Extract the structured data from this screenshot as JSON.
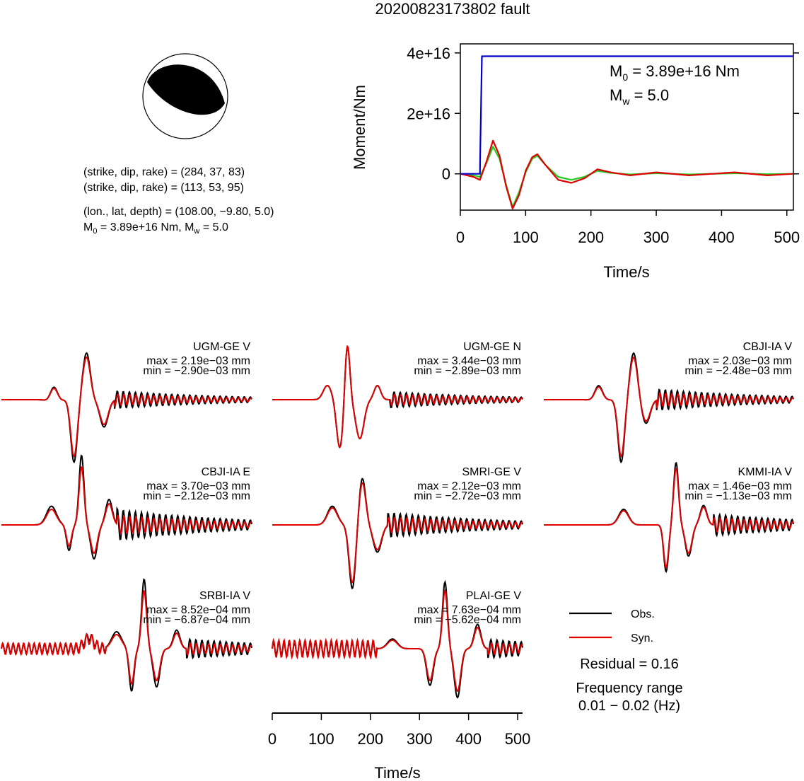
{
  "title": "20200823173802 fault",
  "colors": {
    "obs": "#000000",
    "syn": "#e00000",
    "stf_step": "#0000cc",
    "stf_green": "#22cc22",
    "ball_fill": "#000000"
  },
  "beachball": {
    "icon": "focal-mechanism-beachball-icon"
  },
  "params": {
    "line1": "(strike, dip, rake) = (284, 37, 83)",
    "line2": "(strike, dip, rake) = (113, 53, 95)",
    "line3": "(lon., lat, depth) = (108.00, −9.80, 5.0)",
    "m0_pre": "M",
    "m0_sub": "0",
    "m0_mid": " = 3.89e+16 Nm, M",
    "mw_sub": "w",
    "mw_post": " = 5.0"
  },
  "legend": {
    "obs": "Obs.",
    "syn": "Syn.",
    "residual": "Residual = 0.16",
    "freq_label": "Frequency range",
    "freq_value": "0.01 − 0.02 (Hz)"
  },
  "chart_data": [
    {
      "type": "line",
      "panel": "source-time-function",
      "xlabel": "Time/s",
      "ylabel": "Moment/Nm",
      "xlim": [
        0,
        510
      ],
      "ylim": [
        -1.2e+16,
        4.3e+16
      ],
      "x_ticks": [
        "0",
        "100",
        "200",
        "300",
        "400",
        "500"
      ],
      "y_ticks": [
        "0",
        "2e+16",
        "4e+16"
      ],
      "annotation": {
        "m0_pre": "M",
        "m0_sub": "0",
        "m0_post": " = 3.89e+16 Nm",
        "mw_pre": "M",
        "mw_sub": "w",
        "mw_post": " = 5.0"
      },
      "series": [
        {
          "color": "#0000cc",
          "x": [
            0,
            30,
            30.5,
            33,
            510
          ],
          "y": [
            0,
            0,
            8000000000000000.0,
            3.89e+16,
            3.89e+16
          ]
        },
        {
          "color": "#e00000",
          "x": [
            0,
            20,
            30,
            40,
            50,
            60,
            70,
            80,
            90,
            100,
            110,
            118,
            130,
            150,
            170,
            190,
            210,
            230,
            260,
            300,
            350,
            420,
            470,
            510
          ],
          "y": [
            0,
            -1000000000000000.0,
            -2000000000000000.0,
            4000000000000000.0,
            1.1e+16,
            6000000000000000.0,
            -4000000000000000.0,
            -1.15e+16,
            -7000000000000000.0,
            1000000000000000.0,
            5500000000000000.0,
            6500000000000000.0,
            3000000000000000.0,
            -2000000000000000.0,
            -3000000000000000.0,
            -1500000000000000.0,
            1500000000000000.0,
            500000000000000.0,
            -500000000000000.0,
            500000000000000.0,
            -500000000000000.0,
            500000000000000.0,
            -500000000000000.0,
            0.0
          ]
        },
        {
          "color": "#22cc22",
          "x": [
            0,
            20,
            30,
            40,
            50,
            60,
            70,
            80,
            90,
            100,
            110,
            118,
            130,
            150,
            170,
            190,
            210,
            230,
            260,
            300,
            350,
            420,
            470,
            510
          ],
          "y": [
            0,
            -500000000000000.0,
            -1000000000000000.0,
            3500000000000000.0,
            9000000000000000.0,
            5000000000000000.0,
            -3500000000000000.0,
            -1.1e+16,
            -6000000000000000.0,
            500000000000000.0,
            5000000000000000.0,
            6000000000000000.0,
            3000000000000000.0,
            -1000000000000000.0,
            -2000000000000000.0,
            -1000000000000000.0,
            1000000000000000.0,
            300000000000000.0,
            -200000000000000.0,
            200000000000000.0,
            -200000000000000.0,
            200000000000000.0,
            -100000000000000.0,
            0.0
          ]
        }
      ]
    },
    {
      "type": "line",
      "panel": "waveforms",
      "xlabel": "Time/s",
      "xlim": [
        0,
        510
      ],
      "x_ticks": [
        "0",
        "100",
        "200",
        "300",
        "400",
        "500"
      ],
      "traces": [
        {
          "station": "UGM-GE V",
          "max": "max = 2.19e−03 mm",
          "min": "min = −2.90e−03 mm"
        },
        {
          "station": "UGM-GE N",
          "max": "max = 3.44e−03 mm",
          "min": "min = −2.89e−03 mm"
        },
        {
          "station": "CBJI-IA V",
          "max": "max = 2.03e−03 mm",
          "min": "min = −2.48e−03 mm"
        },
        {
          "station": "CBJI-IA E",
          "max": "max = 3.70e−03 mm",
          "min": "min = −2.12e−03 mm"
        },
        {
          "station": "SMRI-GE V",
          "max": "max = 2.12e−03 mm",
          "min": "min = −2.72e−03 mm"
        },
        {
          "station": "KMMI-IA V",
          "max": "max = 1.46e−03 mm",
          "min": "min = −1.13e−03 mm"
        },
        {
          "station": "SRBI-IA V",
          "max": "max = 8.52e−04 mm",
          "min": "min = −6.87e−04 mm"
        },
        {
          "station": "PLAI-GE V",
          "max": "max = 7.63e−04 mm",
          "min": "min = −5.62e−04 mm"
        }
      ]
    }
  ]
}
